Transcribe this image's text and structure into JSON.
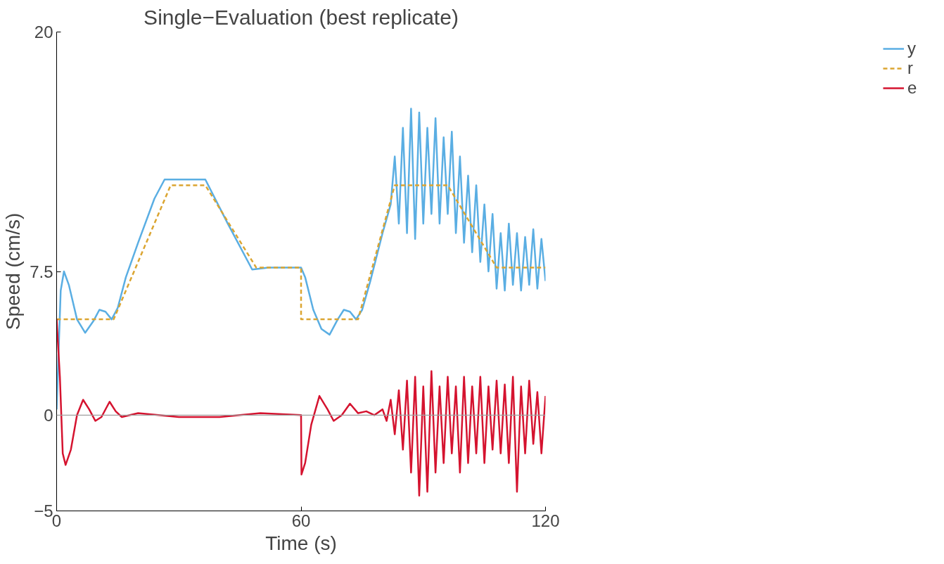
{
  "chart_data": {
    "type": "line",
    "title": "Single−Evaluation (best replicate)",
    "xlabel": "Time (s)",
    "ylabel": "Speed (cm/s)",
    "xlim": [
      0,
      120
    ],
    "xticks": [
      0,
      60,
      120
    ],
    "ylim": [
      -5,
      20
    ],
    "yticks": [
      -5,
      0,
      7.5,
      20
    ],
    "grid": false,
    "legend": "right",
    "ref_lines": [
      {
        "axis": "y",
        "value": 0,
        "label": null,
        "color": "#a0a0a0"
      }
    ],
    "series": [
      {
        "name": "y",
        "color": "#5aaee3",
        "line_style": "solid",
        "x": [
          0,
          1,
          1.8,
          3,
          5,
          7,
          9,
          10.5,
          12,
          13.5,
          15,
          17,
          20,
          24,
          26.5,
          30,
          36.5,
          42,
          48,
          52,
          60,
          61,
          63,
          65,
          67,
          69,
          70.5,
          72,
          73.5,
          75,
          77,
          80,
          82,
          83,
          84,
          85,
          86,
          87,
          88,
          89,
          90,
          91,
          92,
          93,
          94,
          95,
          96,
          97,
          98,
          99,
          100,
          101,
          102,
          103,
          104,
          105,
          106,
          107,
          108,
          109,
          110,
          111,
          112,
          113,
          114,
          115,
          116,
          117,
          118,
          119,
          120
        ],
        "values": [
          0.3,
          6.5,
          7.5,
          6.8,
          5,
          4.3,
          4.9,
          5.5,
          5.4,
          5.0,
          5.6,
          7.2,
          9.0,
          11.3,
          12.3,
          12.3,
          12.3,
          10.0,
          7.6,
          7.7,
          7.7,
          7.2,
          5.5,
          4.5,
          4.2,
          5.0,
          5.5,
          5.4,
          5.0,
          5.5,
          7.0,
          9.5,
          11.0,
          13.5,
          10,
          15,
          9.5,
          16,
          9.2,
          15.8,
          10,
          15,
          10.5,
          15.5,
          10,
          14.5,
          10.5,
          14.8,
          9.5,
          13.5,
          9,
          12.5,
          8.5,
          12,
          8,
          11,
          7.5,
          10.5,
          6.6,
          9.5,
          6.5,
          10,
          6.8,
          9.5,
          6.5,
          9.3,
          6.8,
          9.7,
          6.6,
          9.2,
          7
        ]
      },
      {
        "name": "r",
        "color": "#dba531",
        "line_style": "dashed",
        "x": [
          0,
          14,
          28,
          36.5,
          49,
          60,
          60,
          74,
          83,
          96,
          108,
          120
        ],
        "values": [
          5,
          5,
          12,
          12,
          7.7,
          7.7,
          5,
          5,
          12,
          12,
          7.7,
          7.7
        ]
      },
      {
        "name": "e",
        "color": "#d5132f",
        "line_style": "solid",
        "x": [
          0,
          0.8,
          1.5,
          2.2,
          3.5,
          5,
          6.5,
          8,
          9.5,
          11,
          13,
          14.5,
          16,
          20,
          25,
          30,
          40,
          50,
          60,
          60.1,
          61,
          62.5,
          64.5,
          66.5,
          68,
          70,
          72,
          74,
          76,
          78,
          80,
          81,
          82,
          83,
          84,
          85,
          86,
          87,
          88,
          89,
          90,
          91,
          92,
          93,
          94,
          95,
          96,
          97,
          98,
          99,
          100,
          101,
          102,
          103,
          104,
          105,
          106,
          107,
          108,
          109,
          110,
          111,
          112,
          113,
          114,
          115,
          116,
          117,
          118,
          119,
          120
        ],
        "values": [
          5,
          2,
          -2,
          -2.6,
          -1.8,
          0,
          0.8,
          0.3,
          -0.3,
          -0.1,
          0.7,
          0.2,
          -0.1,
          0.1,
          0,
          -0.1,
          -0.1,
          0.1,
          0,
          -3.1,
          -2.5,
          -0.5,
          1,
          0.3,
          -0.3,
          0,
          0.6,
          0.1,
          0.2,
          0,
          0.3,
          -0.3,
          0.8,
          -1,
          1.3,
          -1.8,
          1.8,
          -3,
          2,
          -4.2,
          1.5,
          -4,
          2.3,
          -3,
          1.5,
          -2.5,
          2,
          -2,
          1.5,
          -3,
          2,
          -2.5,
          1.5,
          -2,
          2,
          -2.5,
          1.5,
          -1.8,
          1.8,
          -2,
          1.6,
          -2.5,
          2,
          -4,
          1.5,
          -2,
          1.8,
          -1.5,
          1.2,
          -2,
          1
        ]
      }
    ]
  }
}
